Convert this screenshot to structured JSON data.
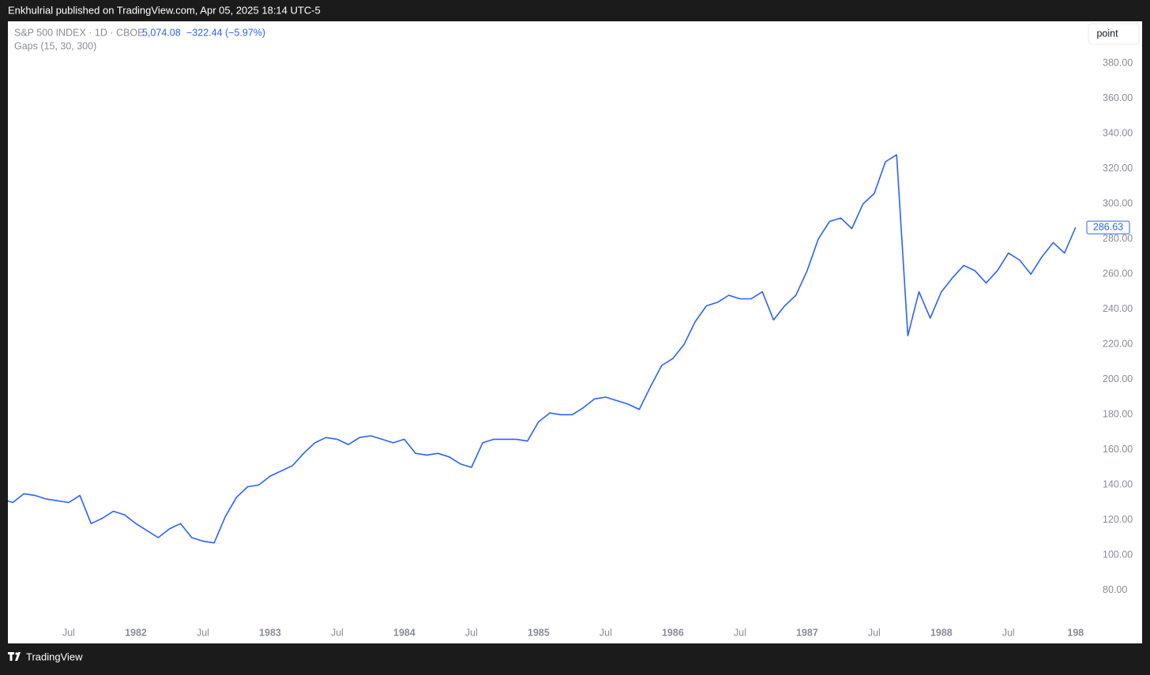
{
  "header": {
    "published": "Enkhulrial published on TradingView.com, Apr 05, 2025 18:14 UTC-5",
    "price": "5,074.08",
    "change": "−322.44 (−5.97%)",
    "indicator": "Gaps (15, 30, 300)",
    "scale_button": "point",
    "brand": "TradingView"
  },
  "chart_data": {
    "type": "line",
    "x": [
      "1981-01",
      "1981-02",
      "1981-03",
      "1981-04",
      "1981-05",
      "1981-06",
      "1981-07",
      "1981-08",
      "1981-09",
      "1981-10",
      "1981-11",
      "1981-12",
      "1982-01",
      "1982-02",
      "1982-03",
      "1982-04",
      "1982-05",
      "1982-06",
      "1982-07",
      "1982-08",
      "1982-09",
      "1982-10",
      "1982-11",
      "1982-12",
      "1983-01",
      "1983-02",
      "1983-03",
      "1983-04",
      "1983-05",
      "1983-06",
      "1983-07",
      "1983-08",
      "1983-09",
      "1983-10",
      "1983-11",
      "1983-12",
      "1984-01",
      "1984-02",
      "1984-03",
      "1984-04",
      "1984-05",
      "1984-06",
      "1984-07",
      "1984-08",
      "1984-09",
      "1984-10",
      "1984-11",
      "1984-12",
      "1985-01",
      "1985-02",
      "1985-03",
      "1985-04",
      "1985-05",
      "1985-06",
      "1985-07",
      "1985-08",
      "1985-09",
      "1985-10",
      "1985-11",
      "1985-12",
      "1986-01",
      "1986-02",
      "1986-03",
      "1986-04",
      "1986-05",
      "1986-06",
      "1986-07",
      "1986-08",
      "1986-09",
      "1986-10",
      "1986-11",
      "1986-12",
      "1987-01",
      "1987-02",
      "1987-03",
      "1987-04",
      "1987-05",
      "1987-06",
      "1987-07",
      "1987-08",
      "1987-09",
      "1987-10",
      "1987-11",
      "1987-12",
      "1988-01",
      "1988-02",
      "1988-03",
      "1988-04",
      "1988-05",
      "1988-06",
      "1988-07",
      "1988-08",
      "1988-09",
      "1988-10",
      "1988-11",
      "1988-12",
      "1989-01"
    ],
    "series": [
      {
        "name": "S&P 500 INDEX · 1D · CBOE",
        "color": "#2962ff",
        "values": [
          132,
          130,
          135,
          134,
          132,
          131,
          130,
          134,
          118,
          121,
          125,
          123,
          118,
          114,
          110,
          115,
          118,
          110,
          108,
          107,
          122,
          133,
          139,
          140,
          145,
          148,
          151,
          158,
          164,
          167,
          166,
          163,
          167,
          168,
          166,
          164,
          166,
          158,
          157,
          158,
          156,
          152,
          150,
          164,
          166,
          166,
          166,
          165,
          176,
          181,
          180,
          180,
          184,
          189,
          190,
          188,
          186,
          183,
          196,
          208,
          212,
          220,
          233,
          242,
          244,
          248,
          246,
          246,
          250,
          234,
          242,
          248,
          262,
          280,
          290,
          292,
          286,
          300,
          306,
          324,
          328,
          225,
          250,
          235,
          250,
          258,
          265,
          262,
          255,
          262,
          272,
          268,
          260,
          270,
          278,
          272,
          286.63
        ]
      }
    ],
    "xlim": [
      "1981-01",
      "1989-02"
    ],
    "xticks": [
      {
        "value": "1981-07",
        "label": "Jul"
      },
      {
        "value": "1982-01",
        "label": "1982"
      },
      {
        "value": "1982-07",
        "label": "Jul"
      },
      {
        "value": "1983-01",
        "label": "1983"
      },
      {
        "value": "1983-07",
        "label": "Jul"
      },
      {
        "value": "1984-01",
        "label": "1984"
      },
      {
        "value": "1984-07",
        "label": "Jul"
      },
      {
        "value": "1985-01",
        "label": "1985"
      },
      {
        "value": "1985-07",
        "label": "Jul"
      },
      {
        "value": "1986-01",
        "label": "1986"
      },
      {
        "value": "1986-07",
        "label": "Jul"
      },
      {
        "value": "1987-01",
        "label": "1987"
      },
      {
        "value": "1987-07",
        "label": "Jul"
      },
      {
        "value": "1988-01",
        "label": "1988"
      },
      {
        "value": "1988-07",
        "label": "Jul"
      },
      {
        "value": "1989-01",
        "label": "198"
      }
    ],
    "ylim": [
      61,
      404
    ],
    "yticks": [
      {
        "value": 80,
        "label": "80.00"
      },
      {
        "value": 100,
        "label": "100.00"
      },
      {
        "value": 120,
        "label": "120.00"
      },
      {
        "value": 140,
        "label": "140.00"
      },
      {
        "value": 160,
        "label": "160.00"
      },
      {
        "value": 180,
        "label": "180.00"
      },
      {
        "value": 200,
        "label": "200.00"
      },
      {
        "value": 220,
        "label": "220.00"
      },
      {
        "value": 240,
        "label": "240.00"
      },
      {
        "value": 260,
        "label": "260.00"
      },
      {
        "value": 280,
        "label": "280.00"
      },
      {
        "value": 300,
        "label": "300.00"
      },
      {
        "value": 320,
        "label": "320.00"
      },
      {
        "value": 340,
        "label": "340.00"
      },
      {
        "value": 360,
        "label": "360.00"
      },
      {
        "value": 380,
        "label": "380.00"
      }
    ],
    "grid": false
  }
}
